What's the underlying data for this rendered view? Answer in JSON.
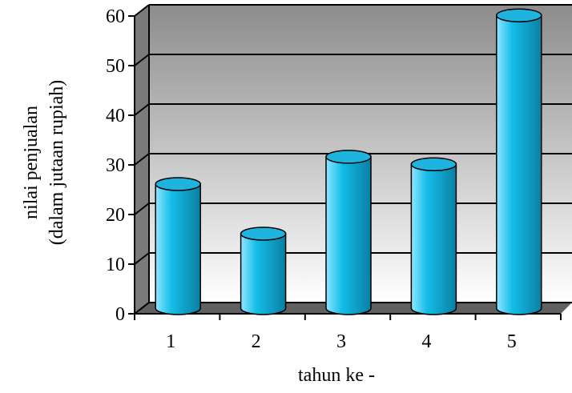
{
  "chart_data": {
    "type": "bar",
    "title": "",
    "categories": [
      "1",
      "2",
      "3",
      "4",
      "5"
    ],
    "values": [
      25,
      15,
      30.5,
      29,
      59
    ],
    "xlabel": "tahun ke -",
    "ylabel_lines": [
      "nilai penjualan",
      "(dalam jutaan rupiah)"
    ],
    "ylim": [
      0,
      60
    ],
    "yticks": [
      "0",
      "10",
      "20",
      "30",
      "40",
      "50",
      "60"
    ],
    "grid": true,
    "legend": "none",
    "style": "3d-cylinder",
    "colors": {
      "bar_light": "#8fe6ff",
      "bar_mid": "#14bde8",
      "bar_dark": "#0a7fa3",
      "bar_top": "#1fb4e0",
      "wall_top": "#8c8c8c",
      "wall_bottom": "#ffffff",
      "side_wall": "#7a7a7a",
      "floor": "#606060"
    }
  }
}
